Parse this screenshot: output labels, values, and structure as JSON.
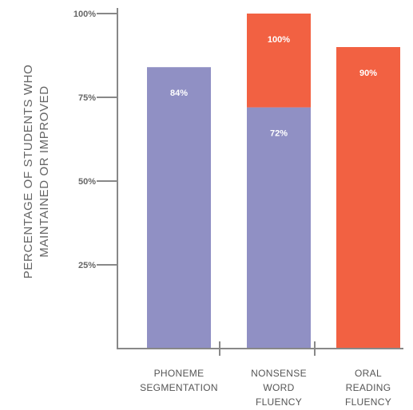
{
  "chart_data": {
    "type": "bar",
    "stacked": true,
    "ylabel": [
      "PERCENTAGE OF STUDENTS WHO",
      "MAINTAINED OR IMPROVED"
    ],
    "xlabel": "",
    "ylim": [
      0,
      100
    ],
    "yticks": [
      25,
      50,
      75,
      100
    ],
    "ytick_labels": [
      "25%",
      "50%",
      "75%",
      "100%"
    ],
    "grid": false,
    "legend": false,
    "categories": [
      [
        "PHONEME",
        "SEGMENTATION"
      ],
      [
        "NONSENSE",
        "WORD",
        "FLUENCY"
      ],
      [
        "ORAL",
        "READING",
        "FLUENCY"
      ]
    ],
    "bars": [
      [
        {
          "value": 84,
          "label": "84%",
          "color": "#9090c4"
        }
      ],
      [
        {
          "value": 72,
          "label": "72%",
          "color": "#9090c4"
        },
        {
          "value": 100,
          "label": "100%",
          "color": "#f26142"
        }
      ],
      [
        {
          "value": 90,
          "label": "90%",
          "color": "#f26142"
        }
      ]
    ]
  }
}
